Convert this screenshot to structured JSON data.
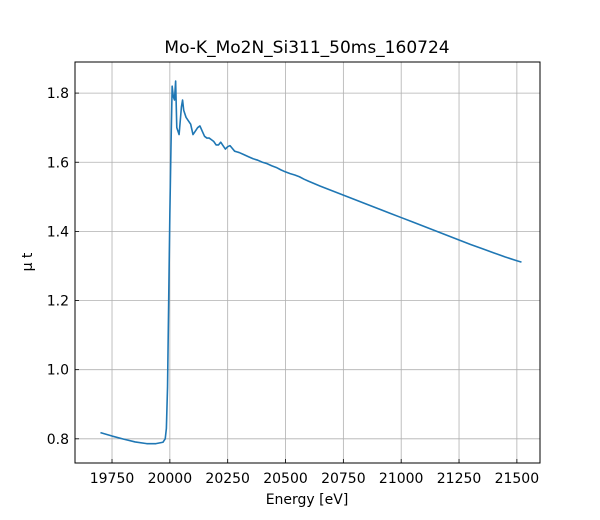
{
  "chart_data": {
    "type": "line",
    "title": "Mo-K_Mo2N_Si311_50ms_160724",
    "xlabel": "Energy [eV]",
    "ylabel": "μ t",
    "xlim": [
      19590,
      21600
    ],
    "ylim": [
      0.73,
      1.89
    ],
    "xticks": [
      19750,
      20000,
      20250,
      20500,
      20750,
      21000,
      21250,
      21500
    ],
    "yticks": [
      0.8,
      1.0,
      1.2,
      1.4,
      1.6,
      1.8
    ],
    "xtick_labels": [
      "19750",
      "20000",
      "20250",
      "20500",
      "20750",
      "21000",
      "21250",
      "21500"
    ],
    "ytick_labels": [
      "0.8",
      "1.0",
      "1.2",
      "1.4",
      "1.6",
      "1.8"
    ],
    "grid": true,
    "series": [
      {
        "color": "#1f77b4",
        "x": [
          19700,
          19750,
          19800,
          19850,
          19900,
          19940,
          19970,
          19980,
          19985,
          19990,
          19995,
          20000,
          20005,
          20010,
          20015,
          20020,
          20025,
          20030,
          20035,
          20040,
          20050,
          20055,
          20060,
          20070,
          20080,
          20090,
          20100,
          20110,
          20120,
          20130,
          20140,
          20150,
          20160,
          20170,
          20180,
          20190,
          20200,
          20210,
          20220,
          20230,
          20240,
          20250,
          20260,
          20270,
          20280,
          20290,
          20300,
          20320,
          20340,
          20360,
          20380,
          20400,
          20420,
          20440,
          20460,
          20480,
          20500,
          20520,
          20540,
          20560,
          20580,
          20600,
          20650,
          20700,
          20750,
          20800,
          20850,
          20900,
          20950,
          21000,
          21050,
          21100,
          21150,
          21200,
          21250,
          21300,
          21350,
          21400,
          21450,
          21500,
          21520
        ],
        "y": [
          0.818,
          0.808,
          0.799,
          0.791,
          0.786,
          0.786,
          0.79,
          0.8,
          0.83,
          0.95,
          1.2,
          1.45,
          1.65,
          1.82,
          1.79,
          1.78,
          1.835,
          1.7,
          1.69,
          1.68,
          1.76,
          1.78,
          1.75,
          1.73,
          1.72,
          1.71,
          1.68,
          1.69,
          1.7,
          1.705,
          1.69,
          1.675,
          1.67,
          1.67,
          1.665,
          1.66,
          1.65,
          1.65,
          1.658,
          1.648,
          1.638,
          1.645,
          1.648,
          1.64,
          1.632,
          1.63,
          1.628,
          1.622,
          1.616,
          1.61,
          1.606,
          1.6,
          1.596,
          1.59,
          1.585,
          1.578,
          1.572,
          1.567,
          1.563,
          1.558,
          1.551,
          1.545,
          1.531,
          1.518,
          1.505,
          1.492,
          1.479,
          1.466,
          1.453,
          1.44,
          1.427,
          1.414,
          1.401,
          1.388,
          1.375,
          1.362,
          1.35,
          1.338,
          1.326,
          1.315,
          1.311
        ]
      }
    ]
  }
}
